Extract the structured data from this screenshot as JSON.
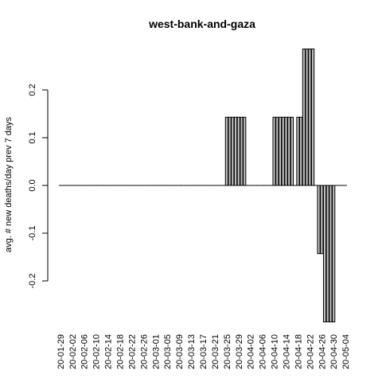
{
  "chart_data": {
    "type": "bar",
    "title": "west-bank-and-gaza",
    "ylabel": "avg. # new deaths/day prev  7  days",
    "xlabel": "",
    "ylim": [
      -0.29,
      0.29
    ],
    "yticks": [
      -0.2,
      -0.1,
      0.0,
      0.1,
      0.2
    ],
    "ytick_labels": [
      "-0.2",
      "-0.1",
      "0.0",
      "0.1",
      "0.2"
    ],
    "categories": [
      "20-01-29",
      "20-01-30",
      "20-01-31",
      "20-02-01",
      "20-02-02",
      "20-02-03",
      "20-02-04",
      "20-02-05",
      "20-02-06",
      "20-02-07",
      "20-02-08",
      "20-02-09",
      "20-02-10",
      "20-02-11",
      "20-02-12",
      "20-02-13",
      "20-02-14",
      "20-02-15",
      "20-02-16",
      "20-02-17",
      "20-02-18",
      "20-02-19",
      "20-02-20",
      "20-02-21",
      "20-02-22",
      "20-02-23",
      "20-02-24",
      "20-02-25",
      "20-02-26",
      "20-02-27",
      "20-02-28",
      "20-02-29",
      "20-03-01",
      "20-03-02",
      "20-03-03",
      "20-03-04",
      "20-03-05",
      "20-03-06",
      "20-03-07",
      "20-03-08",
      "20-03-09",
      "20-03-10",
      "20-03-11",
      "20-03-12",
      "20-03-13",
      "20-03-14",
      "20-03-15",
      "20-03-16",
      "20-03-17",
      "20-03-18",
      "20-03-19",
      "20-03-20",
      "20-03-21",
      "20-03-22",
      "20-03-23",
      "20-03-24",
      "20-03-25",
      "20-03-26",
      "20-03-27",
      "20-03-28",
      "20-03-29",
      "20-03-30",
      "20-03-31",
      "20-04-01",
      "20-04-02",
      "20-04-03",
      "20-04-04",
      "20-04-05",
      "20-04-06",
      "20-04-07",
      "20-04-08",
      "20-04-09",
      "20-04-10",
      "20-04-11",
      "20-04-12",
      "20-04-13",
      "20-04-14",
      "20-04-15",
      "20-04-16",
      "20-04-17",
      "20-04-18",
      "20-04-19",
      "20-04-20",
      "20-04-21",
      "20-04-22",
      "20-04-23",
      "20-04-24",
      "20-04-25",
      "20-04-26",
      "20-04-27",
      "20-04-28",
      "20-04-29",
      "20-04-30",
      "20-05-01",
      "20-05-02",
      "20-05-03",
      "20-05-04"
    ],
    "values": [
      0,
      0,
      0,
      0,
      0,
      0,
      0,
      0,
      0,
      0,
      0,
      0,
      0,
      0,
      0,
      0,
      0,
      0,
      0,
      0,
      0,
      0,
      0,
      0,
      0,
      0,
      0,
      0,
      0,
      0,
      0,
      0,
      0,
      0,
      0,
      0,
      0,
      0,
      0,
      0,
      0,
      0,
      0,
      0,
      0,
      0,
      0,
      0,
      0,
      0,
      0,
      0,
      0,
      0,
      0,
      0,
      0.142857,
      0.142857,
      0.142857,
      0.142857,
      0.142857,
      0.142857,
      0.142857,
      0,
      0,
      0,
      0,
      0,
      0,
      0,
      0,
      0,
      0.142857,
      0.142857,
      0.142857,
      0.142857,
      0.142857,
      0.142857,
      0.142857,
      0,
      0.142857,
      0.142857,
      0.285714,
      0.285714,
      0.285714,
      0.285714,
      0,
      -0.142857,
      -0.142857,
      -0.285714,
      -0.285714,
      -0.285714,
      -0.285714,
      0,
      0,
      0,
      0
    ],
    "xtick_labels": [
      "20-01-29",
      "20-02-02",
      "20-02-06",
      "20-02-10",
      "20-02-14",
      "20-02-18",
      "20-02-22",
      "20-02-26",
      "20-03-01",
      "20-03-05",
      "20-03-09",
      "20-03-13",
      "20-03-17",
      "20-03-21",
      "20-03-25",
      "20-03-29",
      "20-04-02",
      "20-04-06",
      "20-04-10",
      "20-04-14",
      "20-04-18",
      "20-04-22",
      "20-04-26",
      "20-04-30",
      "20-05-04"
    ],
    "bar_fill": "#bebebe",
    "bar_stroke": "#000000",
    "grid": false,
    "legend": "none"
  }
}
